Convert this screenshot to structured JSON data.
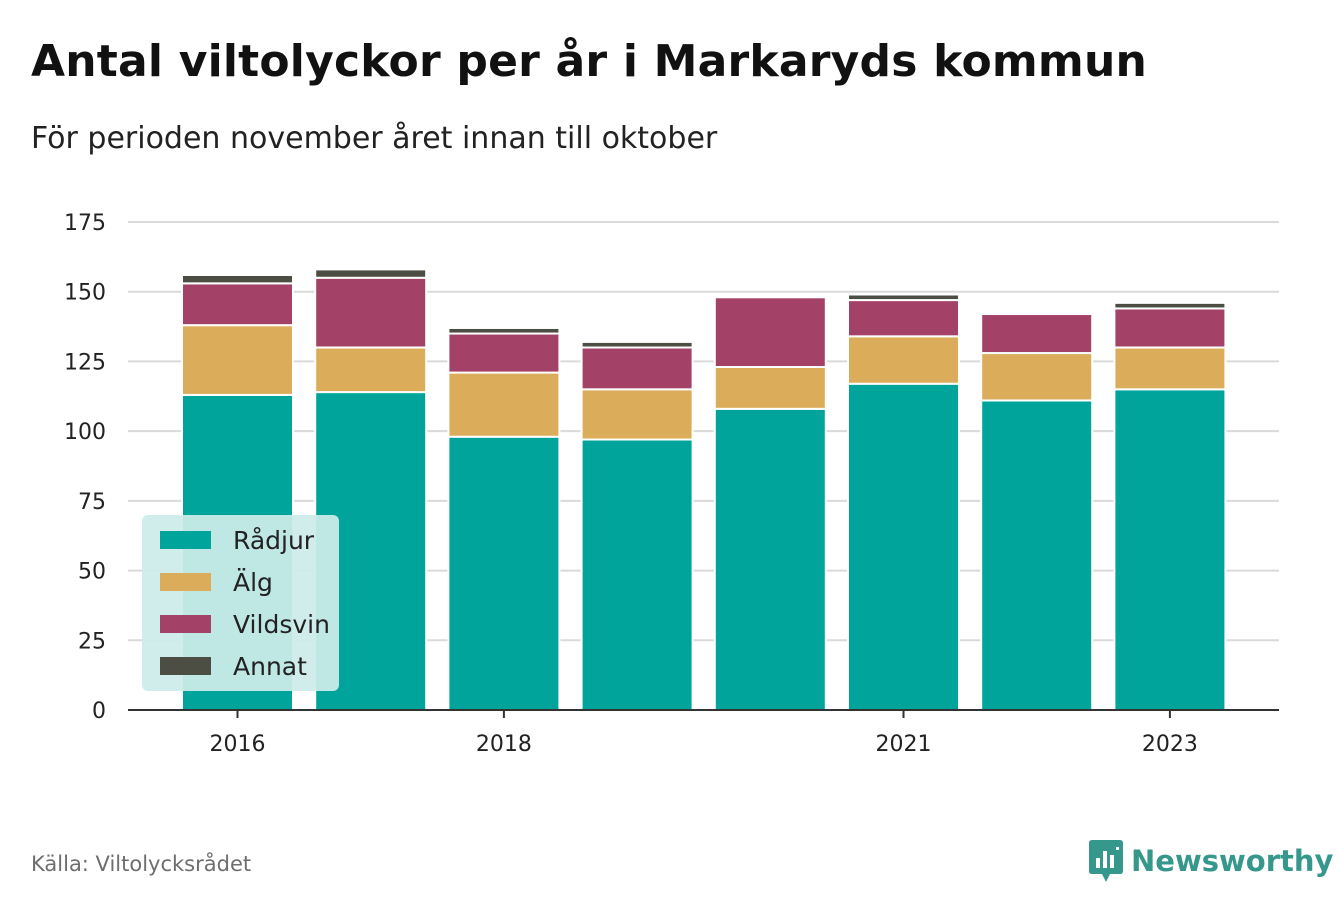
{
  "header": {
    "title": "Antal viltolyckor per år i Markaryds kommun",
    "subtitle": "För perioden november året innan till oktober"
  },
  "footer": {
    "source": "Källa: Viltolycksrådet",
    "brand": "Newsworthy"
  },
  "colors": {
    "Rådjur": "#00a49a",
    "Älg": "#dbac5a",
    "Vildsvin": "#a44166",
    "Annat": "#4c4e44",
    "grid": "#dadada",
    "axis": "#333333",
    "legend_bg": "#cdecea",
    "brand": "#36978c"
  },
  "chart_data": {
    "type": "bar",
    "stacked": true,
    "x": [
      2016,
      2017,
      2018,
      2019,
      2020,
      2021,
      2022,
      2023
    ],
    "x_tick_labels": [
      "2016",
      "2018",
      "2021",
      "2023"
    ],
    "y_ticks": [
      0,
      25,
      50,
      75,
      100,
      125,
      150,
      175
    ],
    "ylim": [
      0,
      175
    ],
    "grid": true,
    "legend_position": "bottom-left",
    "series": [
      {
        "name": "Rådjur",
        "values": [
          113,
          114,
          98,
          97,
          108,
          117,
          111,
          115
        ]
      },
      {
        "name": "Älg",
        "values": [
          25,
          16,
          23,
          18,
          15,
          17,
          17,
          15
        ]
      },
      {
        "name": "Vildsvin",
        "values": [
          15,
          25,
          14,
          15,
          25,
          13,
          14,
          14
        ]
      },
      {
        "name": "Annat",
        "values": [
          3,
          3,
          2,
          2,
          0,
          2,
          0,
          2
        ]
      }
    ]
  }
}
